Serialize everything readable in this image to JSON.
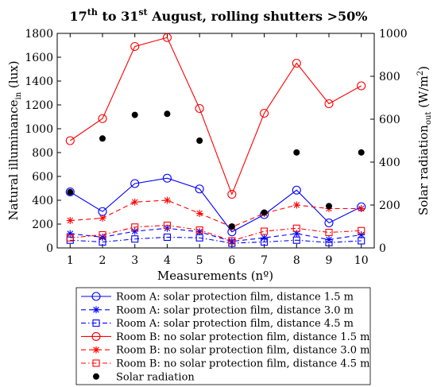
{
  "chart_data": {
    "type": "line",
    "title": {
      "main": "17",
      "sup1": "th",
      "mid": " to 31",
      "sup2": "st",
      "tail": " August, rolling shutters >50%"
    },
    "x": [
      1,
      2,
      3,
      4,
      5,
      6,
      7,
      8,
      9,
      10
    ],
    "xlabel": "Measurements (nº)",
    "ylabel_left": {
      "text": "Natural illuminance",
      "sub": "in",
      "unit": " (lux)"
    },
    "ylabel_right": {
      "text": "Solar radiation",
      "sub": "out",
      "unit": " (W/m",
      "sup": "2",
      "close": ")"
    },
    "ylim_left": [
      0,
      1800
    ],
    "ylim_right": [
      0,
      1000
    ],
    "yticks_left": [
      "0",
      "200",
      "400",
      "600",
      "800",
      "1000",
      "1200",
      "1400",
      "1600",
      "1800"
    ],
    "yticks_right": [
      "0",
      "200",
      "400",
      "600",
      "800",
      "1000"
    ],
    "xticks": [
      "1",
      "2",
      "3",
      "4",
      "5",
      "6",
      "7",
      "8",
      "9",
      "10"
    ],
    "grid": false,
    "legend_position": "bottom",
    "series": [
      {
        "name": "Room A: solar protection film, distance 1.5 m",
        "color": "#0000ff",
        "dash": "solid",
        "marker": "circle",
        "axis": "left",
        "values": [
          470,
          305,
          540,
          585,
          495,
          135,
          280,
          485,
          210,
          345
        ]
      },
      {
        "name": "Room A: solar protection film, distance 3.0 m",
        "color": "#0000ff",
        "dash": "dash",
        "marker": "star",
        "axis": "left",
        "values": [
          120,
          90,
          140,
          165,
          135,
          55,
          85,
          120,
          70,
          110
        ]
      },
      {
        "name": "Room A: solar protection film, distance 4.5 m",
        "color": "#0000ff",
        "dash": "dashdot",
        "marker": "square",
        "axis": "left",
        "values": [
          65,
          50,
          75,
          90,
          85,
          40,
          50,
          65,
          45,
          60
        ]
      },
      {
        "name": "Room B: no solar protection film, distance 1.5 m",
        "color": "#ff0000",
        "dash": "solid",
        "marker": "circle",
        "axis": "left",
        "values": [
          900,
          1085,
          1690,
          1765,
          1170,
          450,
          1130,
          1550,
          1210,
          1360
        ]
      },
      {
        "name": "Room B: no solar protection film, distance 3.0 m",
        "color": "#ff0000",
        "dash": "dash",
        "marker": "star",
        "axis": "left",
        "values": [
          230,
          250,
          385,
          400,
          290,
          175,
          290,
          360,
          330,
          330
        ]
      },
      {
        "name": "Room B: no solar protection film, distance 4.5 m",
        "color": "#ff0000",
        "dash": "dashdot",
        "marker": "square",
        "axis": "left",
        "values": [
          85,
          110,
          175,
          190,
          150,
          60,
          140,
          165,
          130,
          145
        ]
      },
      {
        "name": "Solar radiation",
        "color": "#000000",
        "dash": "none",
        "marker": "dot",
        "axis": "right",
        "values": [
          260,
          510,
          620,
          625,
          500,
          100,
          165,
          445,
          195,
          445
        ]
      }
    ]
  }
}
